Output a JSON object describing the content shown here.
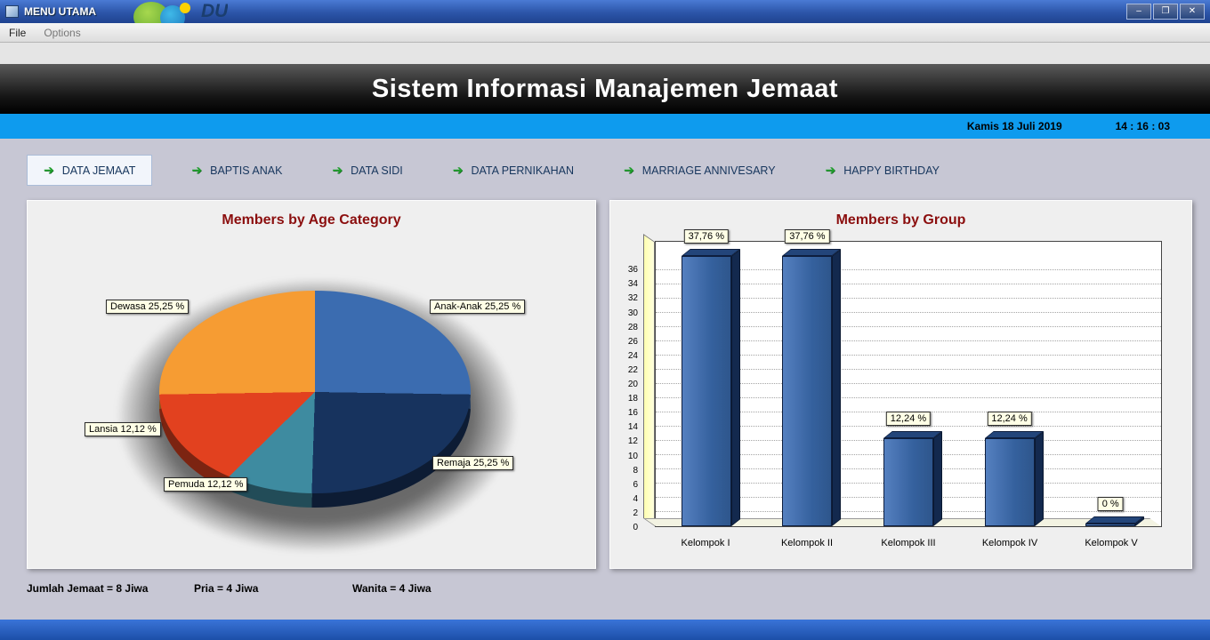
{
  "window": {
    "title": "MENU UTAMA",
    "logo_text": "DU",
    "controls": {
      "minimize": "–",
      "maximize": "❐",
      "close": "✕"
    }
  },
  "menu": {
    "items": [
      {
        "label": "File"
      },
      {
        "label": "Options"
      }
    ]
  },
  "banner": {
    "title": "Sistem Informasi Manajemen Jemaat"
  },
  "datebar": {
    "date": "Kamis 18 Juli 2019",
    "time": "14 : 16 : 03"
  },
  "nav": {
    "items": [
      {
        "label": "DATA JEMAAT",
        "active": true
      },
      {
        "label": "BAPTIS ANAK",
        "active": false
      },
      {
        "label": "DATA SIDI",
        "active": false
      },
      {
        "label": "DATA PERNIKAHAN",
        "active": false
      },
      {
        "label": "MARRIAGE ANNIVESARY",
        "active": false
      },
      {
        "label": "HAPPY BIRTHDAY",
        "active": false
      }
    ]
  },
  "chart_data": [
    {
      "type": "pie",
      "title": "Members by Age Category",
      "slices": [
        {
          "label": "Anak-Anak",
          "value": 25.25,
          "display": "Anak-Anak 25,25 %",
          "color": "#3B6CB0"
        },
        {
          "label": "Remaja",
          "value": 25.25,
          "display": "Remaja 25,25 %",
          "color": "#17335E"
        },
        {
          "label": "Pemuda",
          "value": 12.12,
          "display": "Pemuda 12,12 %",
          "color": "#3E8BA0"
        },
        {
          "label": "Lansia",
          "value": 12.12,
          "display": "Lansia 12,12 %",
          "color": "#E2411F"
        },
        {
          "label": "Dewasa",
          "value": 25.25,
          "display": "Dewasa 25,25 %",
          "color": "#F69C33"
        }
      ]
    },
    {
      "type": "bar",
      "title": "Members by Group",
      "categories": [
        "Kelompok I",
        "Kelompok II",
        "Kelompok III",
        "Kelompok IV",
        "Kelompok V"
      ],
      "values": [
        37.76,
        37.76,
        12.24,
        12.24,
        0
      ],
      "value_labels": [
        "37,76 %",
        "37,76 %",
        "12,24 %",
        "12,24 %",
        "0 %"
      ],
      "ylim": [
        0,
        40
      ],
      "ytick_step": 2,
      "ytick_max": 36,
      "bar_color": "#35619E",
      "grid": true,
      "legend": "none"
    }
  ],
  "stats": [
    {
      "text": "Jumlah Jemaat = 8 Jiwa"
    },
    {
      "text": "Pria = 4 Jiwa"
    },
    {
      "text": "Wanita = 4 Jiwa"
    }
  ],
  "colors": {
    "titlebar": "#2C55A8",
    "datebar": "#0E9BEE",
    "banner_bg": "#000000",
    "panel_title": "#8B0E0E",
    "body_bg": "#C7C7D4",
    "footer": "#1C4FA8",
    "nav_text": "#17365D",
    "arrow_green": "#1FA02C"
  }
}
